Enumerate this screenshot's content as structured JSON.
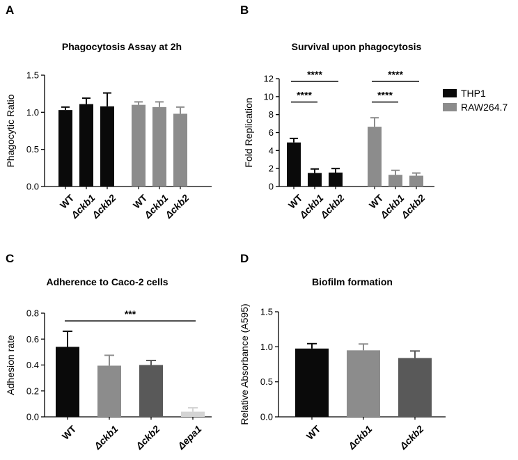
{
  "chart_data": [
    {
      "panel": "A",
      "type": "bar",
      "title": "Phagocytosis Assay at 2h",
      "ylabel": "Phagocytic Ratio",
      "ylim": [
        0,
        1.5
      ],
      "yticks": [
        "0.0",
        "0.5",
        "1.0",
        "1.5"
      ],
      "categories": [
        "WT",
        "Δckb1",
        "Δckb2",
        "WT",
        "Δckb1",
        "Δckb2"
      ],
      "category_italic": [
        false,
        true,
        true,
        false,
        true,
        true
      ],
      "values": [
        1.03,
        1.11,
        1.08,
        1.1,
        1.07,
        0.98
      ],
      "errors": [
        0.04,
        0.08,
        0.18,
        0.04,
        0.07,
        0.09
      ],
      "colors": [
        "#0a0a0a",
        "#0a0a0a",
        "#0a0a0a",
        "#8c8c8c",
        "#8c8c8c",
        "#8c8c8c"
      ],
      "groups": [
        0,
        0,
        0,
        1,
        1,
        1
      ]
    },
    {
      "panel": "B",
      "type": "bar",
      "title": "Survival upon phagocytosis",
      "ylabel": "Fold Replication",
      "ylim": [
        0,
        12
      ],
      "yticks": [
        "0",
        "2",
        "4",
        "6",
        "8",
        "10",
        "12"
      ],
      "categories": [
        "WT",
        "Δckb1",
        "Δckb2",
        "WT",
        "Δckb1",
        "Δckb2"
      ],
      "category_italic": [
        false,
        true,
        true,
        false,
        true,
        true
      ],
      "values": [
        4.9,
        1.5,
        1.55,
        6.65,
        1.3,
        1.2
      ],
      "errors": [
        0.45,
        0.45,
        0.45,
        1.0,
        0.5,
        0.3
      ],
      "colors": [
        "#0a0a0a",
        "#0a0a0a",
        "#0a0a0a",
        "#8c8c8c",
        "#8c8c8c",
        "#8c8c8c"
      ],
      "groups": [
        0,
        0,
        0,
        1,
        1,
        1
      ],
      "legend": [
        {
          "name": "THP1",
          "color": "#0a0a0a"
        },
        {
          "name": "RAW264.7",
          "color": "#8c8c8c"
        }
      ],
      "legend_position": "right",
      "significance": [
        {
          "from": 0,
          "to": 2,
          "y": 11.7,
          "label": "****"
        },
        {
          "from": 0,
          "to": 1,
          "y": 9.4,
          "label": "****"
        },
        {
          "from": 3,
          "to": 5,
          "y": 11.7,
          "label": "****"
        },
        {
          "from": 3,
          "to": 4,
          "y": 9.4,
          "label": "****"
        }
      ]
    },
    {
      "panel": "C",
      "type": "bar",
      "title": "Adherence to Caco-2 cells",
      "ylabel": "Adhesion rate",
      "ylim": [
        0,
        0.8
      ],
      "yticks": [
        "0.0",
        "0.2",
        "0.4",
        "0.6",
        "0.8"
      ],
      "categories": [
        "WT",
        "Δckb1",
        "Δckb2",
        "Δepa1"
      ],
      "category_italic": [
        false,
        true,
        true,
        true
      ],
      "values": [
        0.54,
        0.395,
        0.4,
        0.04
      ],
      "errors": [
        0.12,
        0.08,
        0.035,
        0.03
      ],
      "colors": [
        "#0a0a0a",
        "#8c8c8c",
        "#595959",
        "#d4d4d4"
      ],
      "groups": [
        0,
        0,
        0,
        0
      ],
      "significance": [
        {
          "from": 0,
          "to": 3,
          "y": 0.74,
          "label": "***"
        }
      ]
    },
    {
      "panel": "D",
      "type": "bar",
      "title": "Biofilm formation",
      "ylabel": "Relative Absorbance (A595)",
      "ylim": [
        0,
        1.5
      ],
      "yticks": [
        "0.0",
        "0.5",
        "1.0",
        "1.5"
      ],
      "categories": [
        "WT",
        "Δckb1",
        "Δckb2"
      ],
      "category_italic": [
        false,
        true,
        true
      ],
      "values": [
        0.975,
        0.95,
        0.84
      ],
      "errors": [
        0.07,
        0.09,
        0.1
      ],
      "colors": [
        "#0a0a0a",
        "#8c8c8c",
        "#595959"
      ],
      "groups": [
        0,
        0,
        0
      ]
    }
  ]
}
